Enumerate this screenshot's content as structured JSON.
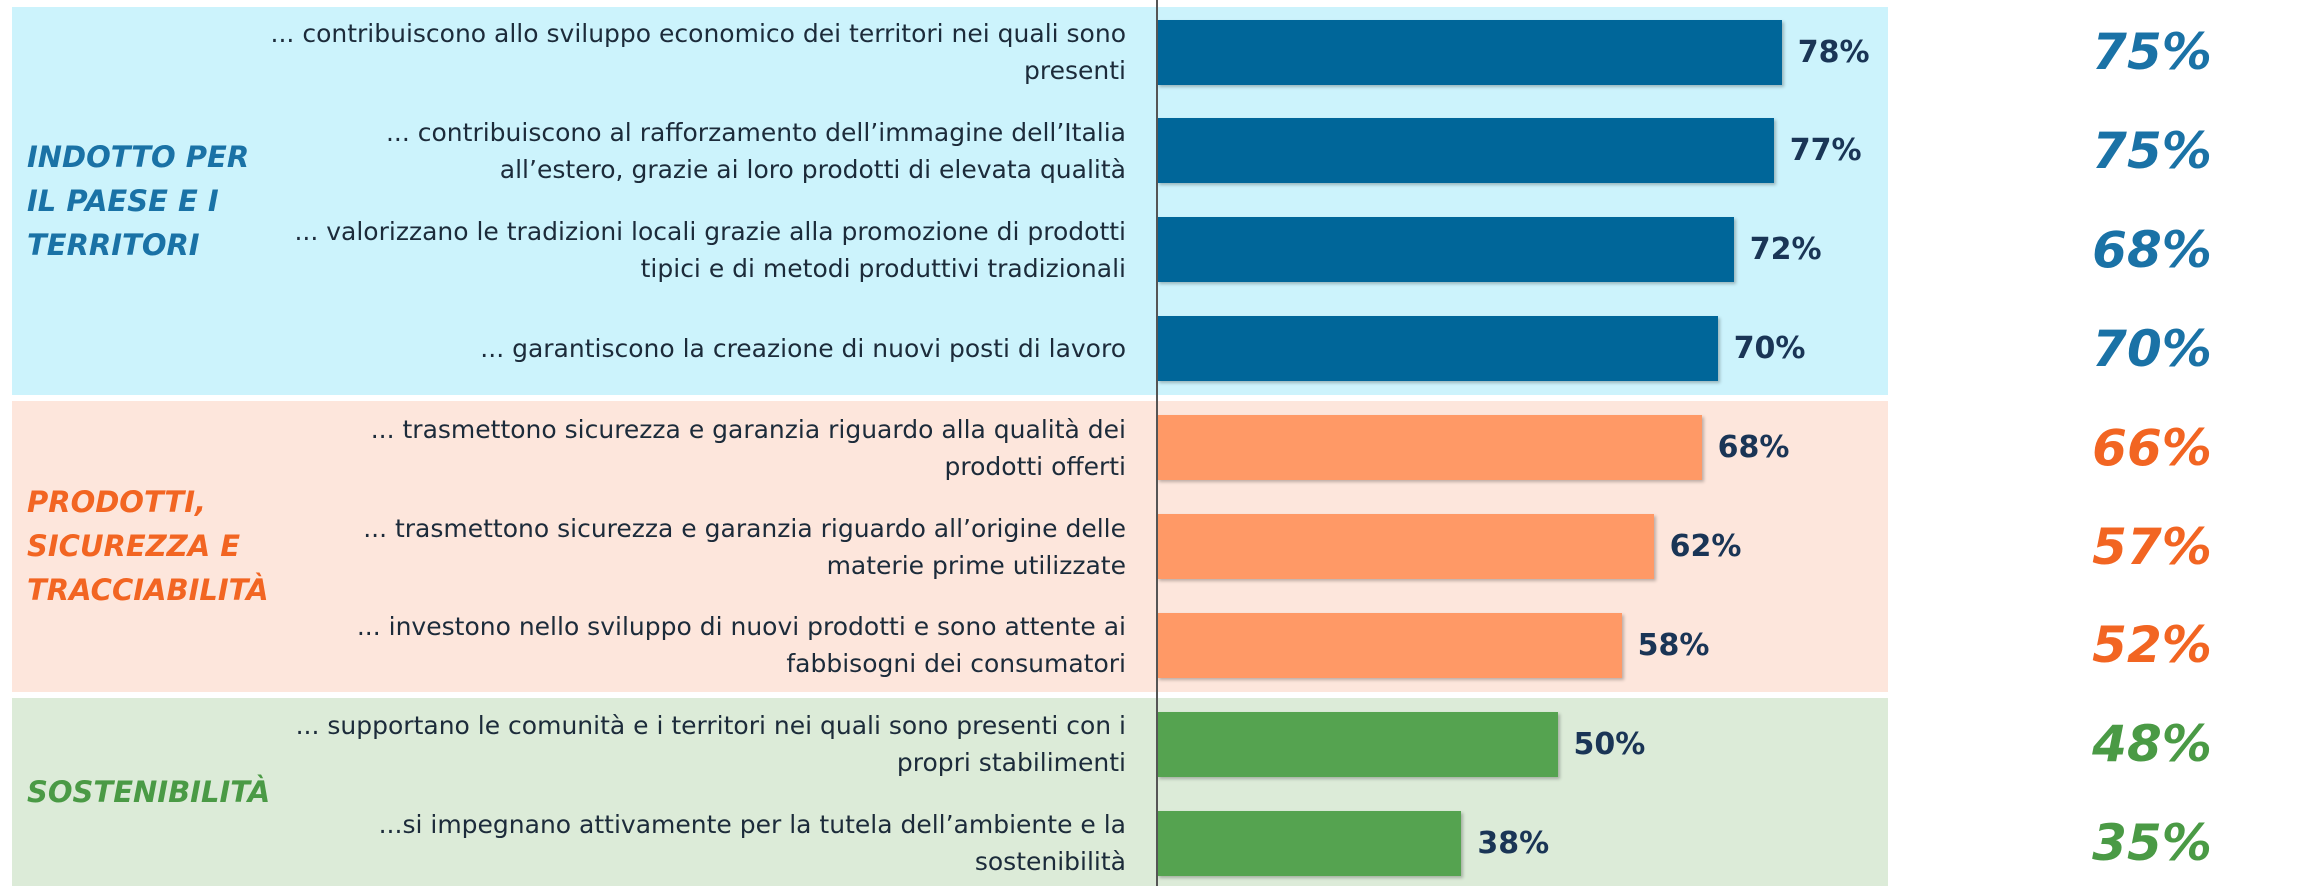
{
  "chart_data": {
    "type": "bar",
    "orientation": "horizontal",
    "xlim": [
      0,
      100
    ],
    "groups": [
      {
        "name": "INDOTTO PER IL PAESE E I TERRITORI",
        "background": "#ccf3fc",
        "color": "#006699",
        "text_color": "#1a72a6",
        "categories": [
          "... contribuiscono allo sviluppo economico dei territori nei quali sono presenti",
          "... contribuiscono al rafforzamento dell’immagine dell’Italia all’estero, grazie ai loro prodotti di elevata qualità",
          "... valorizzano le tradizioni locali grazie alla promozione di prodotti tipici e di metodi produttivi tradizionali",
          "... garantiscono la creazione di nuovi posti di lavoro"
        ],
        "values": [
          78,
          77,
          72,
          70
        ],
        "value_labels": [
          "78%",
          "77%",
          "72%",
          "70%"
        ],
        "compare_values": [
          75,
          75,
          68,
          70
        ],
        "compare_labels": [
          "75%",
          "75%",
          "68%",
          "70%"
        ]
      },
      {
        "name": "PRODOTTI, SICUREZZA E TRACCIABILITÀ",
        "background": "#fde6dc",
        "color": "#ff9966",
        "text_color": "#f26522",
        "categories": [
          "... trasmettono sicurezza e garanzia riguardo alla qualità dei prodotti offerti",
          "... trasmettono sicurezza e garanzia riguardo all’origine delle materie prime utilizzate",
          "... investono nello sviluppo di nuovi prodotti e sono attente ai fabbisogni dei consumatori"
        ],
        "values": [
          68,
          62,
          58
        ],
        "value_labels": [
          "68%",
          "62%",
          "58%"
        ],
        "compare_values": [
          66,
          57,
          52
        ],
        "compare_labels": [
          "66%",
          "57%",
          "52%"
        ]
      },
      {
        "name": "SOSTENIBILITÀ",
        "background": "#dcebd8",
        "color": "#55a350",
        "text_color": "#4a9a45",
        "categories": [
          "... supportano le comunità e i territori nei quali sono presenti con i propri stabilimenti",
          "...si impegnano attivamente per la tutela dell’ambiente e la sostenibilità"
        ],
        "values": [
          50,
          38
        ],
        "value_labels": [
          "50%",
          "38%"
        ],
        "compare_values": [
          48,
          35
        ],
        "compare_labels": [
          "48%",
          "35%"
        ]
      }
    ]
  }
}
